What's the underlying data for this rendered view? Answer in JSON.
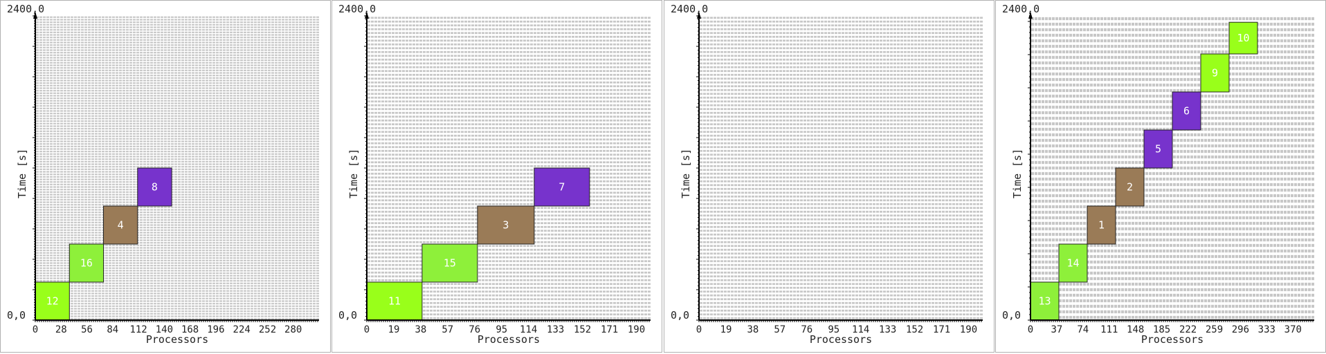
{
  "chart_data": [
    {
      "type": "gantt",
      "ylabel": "Time [s]",
      "xlabel": "Processors",
      "y_max_label": "2400,0",
      "origin_label": "0,0",
      "xlim": [
        0,
        308
      ],
      "ylim": [
        0,
        2400
      ],
      "x_ticks": [
        "0",
        "28",
        "56",
        "84",
        "112",
        "140",
        "168",
        "196",
        "224",
        "252",
        "280"
      ],
      "x_tick_values": [
        0,
        28,
        56,
        84,
        112,
        140,
        168,
        196,
        224,
        252,
        280
      ],
      "row_count": 120,
      "row_style": "dense",
      "jobs": [
        {
          "id": "12",
          "x0": 0,
          "x1": 37,
          "y0": 0,
          "y1": 300,
          "color": "#99ff1a"
        },
        {
          "id": "16",
          "x0": 37,
          "x1": 74,
          "y0": 300,
          "y1": 600,
          "color": "#8ef03a"
        },
        {
          "id": "4",
          "x0": 74,
          "x1": 111,
          "y0": 600,
          "y1": 900,
          "color": "#9a7b57"
        },
        {
          "id": "8",
          "x0": 111,
          "x1": 148,
          "y0": 900,
          "y1": 1200,
          "color": "#7733cc"
        }
      ]
    },
    {
      "type": "gantt",
      "ylabel": "Time [s]",
      "xlabel": "Processors",
      "y_max_label": "2400,0",
      "origin_label": "0,0",
      "xlim": [
        0,
        200
      ],
      "ylim": [
        0,
        2400
      ],
      "x_ticks": [
        "0",
        "19",
        "38",
        "57",
        "76",
        "95",
        "114",
        "133",
        "152",
        "171",
        "190"
      ],
      "x_tick_values": [
        0,
        19,
        38,
        57,
        76,
        95,
        114,
        133,
        152,
        171,
        190
      ],
      "row_count": 80,
      "row_style": "medium",
      "jobs": [
        {
          "id": "11",
          "x0": 0,
          "x1": 39,
          "y0": 0,
          "y1": 300,
          "color": "#99ff1a"
        },
        {
          "id": "15",
          "x0": 39,
          "x1": 78,
          "y0": 300,
          "y1": 600,
          "color": "#8ef03a"
        },
        {
          "id": "3",
          "x0": 78,
          "x1": 118,
          "y0": 600,
          "y1": 900,
          "color": "#9a7b57"
        },
        {
          "id": "7",
          "x0": 118,
          "x1": 157,
          "y0": 900,
          "y1": 1200,
          "color": "#7733cc"
        }
      ]
    },
    {
      "type": "gantt",
      "ylabel": "Time [s]",
      "xlabel": "Processors",
      "y_max_label": "2400,0",
      "origin_label": "0,0",
      "xlim": [
        0,
        200
      ],
      "ylim": [
        0,
        2400
      ],
      "x_ticks": [
        "0",
        "19",
        "38",
        "57",
        "76",
        "95",
        "114",
        "133",
        "152",
        "171",
        "190"
      ],
      "x_tick_values": [
        0,
        19,
        38,
        57,
        76,
        95,
        114,
        133,
        152,
        171,
        190
      ],
      "row_count": 80,
      "row_style": "medium",
      "jobs": []
    },
    {
      "type": "gantt",
      "ylabel": "Time [s]",
      "xlabel": "Processors",
      "y_max_label": "2400,0",
      "origin_label": "0,0",
      "xlim": [
        0,
        400
      ],
      "ylim": [
        0,
        2400
      ],
      "x_ticks": [
        "0",
        "37",
        "74",
        "111",
        "148",
        "185",
        "222",
        "259",
        "296",
        "333",
        "370"
      ],
      "x_tick_values": [
        0,
        37,
        74,
        111,
        148,
        185,
        222,
        259,
        296,
        333,
        370
      ],
      "row_count": 55,
      "row_style": "sparse",
      "jobs": [
        {
          "id": "13",
          "x0": 0,
          "x1": 40,
          "y0": 0,
          "y1": 300,
          "color": "#8ef03a"
        },
        {
          "id": "14",
          "x0": 40,
          "x1": 80,
          "y0": 300,
          "y1": 600,
          "color": "#8ef03a"
        },
        {
          "id": "1",
          "x0": 80,
          "x1": 120,
          "y0": 600,
          "y1": 900,
          "color": "#9a7b57"
        },
        {
          "id": "2",
          "x0": 120,
          "x1": 160,
          "y0": 900,
          "y1": 1200,
          "color": "#9a7b57"
        },
        {
          "id": "5",
          "x0": 160,
          "x1": 200,
          "y0": 1200,
          "y1": 1500,
          "color": "#7733cc"
        },
        {
          "id": "6",
          "x0": 200,
          "x1": 240,
          "y0": 1500,
          "y1": 1800,
          "color": "#7733cc"
        },
        {
          "id": "9",
          "x0": 240,
          "x1": 280,
          "y0": 1800,
          "y1": 2100,
          "color": "#99ff1a"
        },
        {
          "id": "10",
          "x0": 280,
          "x1": 320,
          "y0": 2100,
          "y1": 2350,
          "color": "#99ff1a"
        }
      ]
    }
  ]
}
